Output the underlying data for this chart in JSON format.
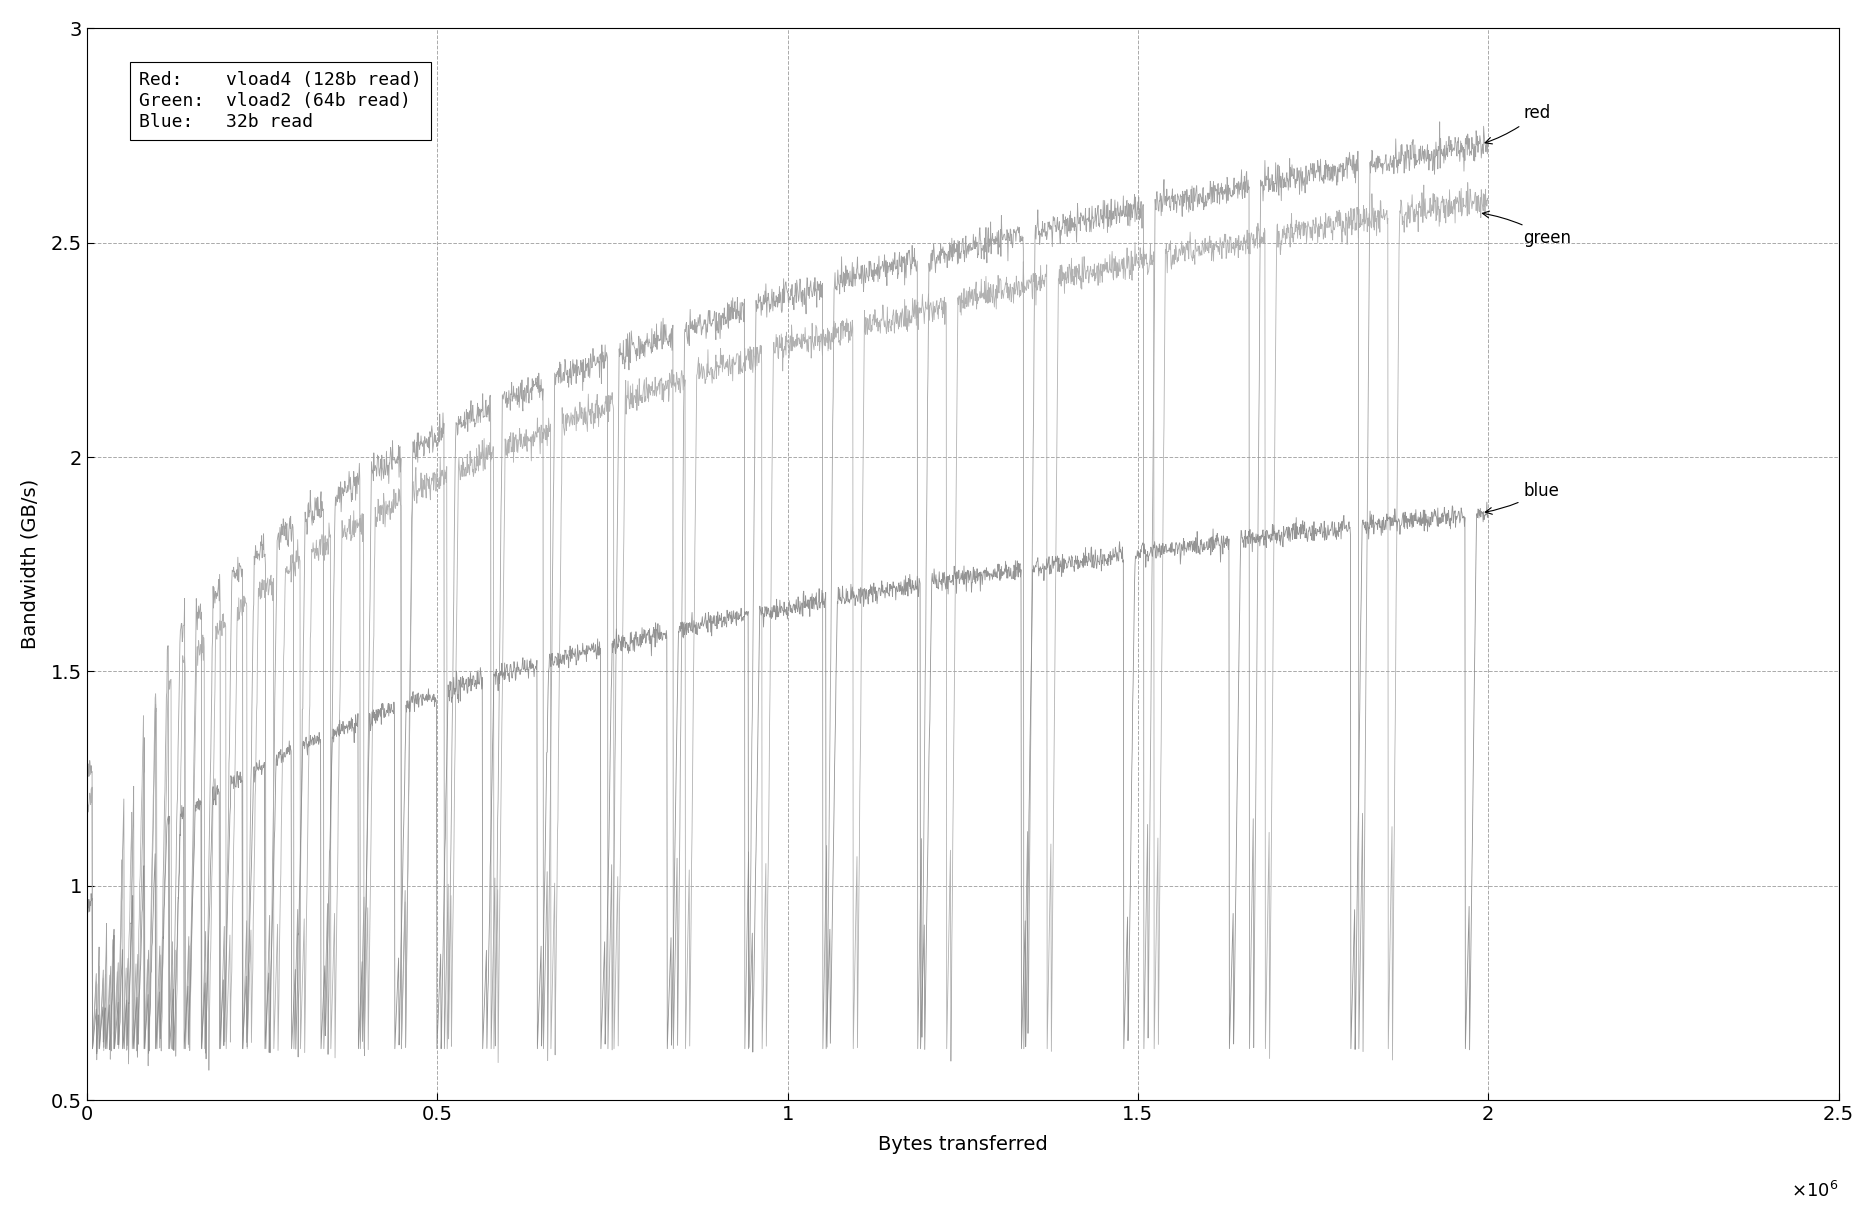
{
  "xlabel": "Bytes transferred",
  "ylabel": "Bandwidth (GB/s)",
  "xlim": [
    0,
    2500000.0
  ],
  "ylim": [
    0.5,
    3.0
  ],
  "xtick_labels": [
    "0",
    "0.5",
    "1",
    "1.5",
    "2",
    "2.5"
  ],
  "ytick_labels": [
    "0.5",
    "1",
    "1.5",
    "2",
    "2.5",
    "3"
  ],
  "legend_text": "Red:    vload4 (128b read)\nGreen:  vload2 (64b read)\nBlue:   32b read",
  "series_labels": [
    "red",
    "green",
    "blue"
  ],
  "line_color": "#808080",
  "background_color": "#ffffff",
  "grid_color": "#aaaaaa",
  "annotation_color": "#000000",
  "x_max_data": 2000000.0,
  "red_y_start": 1.25,
  "red_y_end": 2.73,
  "green_y_start": 1.18,
  "green_y_end": 2.6,
  "blue_y_start": 0.95,
  "blue_y_end": 1.87,
  "dip_bottom_red": 0.62,
  "dip_bottom_green": 0.62,
  "dip_bottom_blue": 0.62,
  "n_dips": 55,
  "n_points": 3000
}
